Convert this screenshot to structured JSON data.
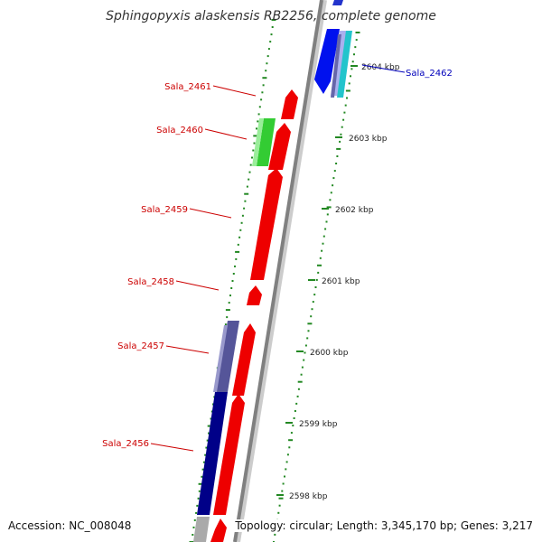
{
  "title": "Sphingopyxis alaskensis RB2256, complete genome",
  "footer": {
    "accession": "Accession: NC_008048",
    "topology": "Topology: circular; Length: 3,345,170 bp; Genes: 3,217"
  },
  "colors": {
    "forward_gene": "#ee0000",
    "reverse_gene": "#0000ee",
    "label_forward": "#cc0000",
    "label_reverse": "#0000bb",
    "backbone": "#888888",
    "ticks": "#228822"
  },
  "genome_ticks": [
    "2604 kbp",
    "2603 kbp",
    "2602 kbp",
    "2601 kbp",
    "2600 kbp",
    "2599 kbp",
    "2598 kbp"
  ],
  "gene_labels": [
    {
      "name": "Sala_2462",
      "strand": "reverse"
    },
    {
      "name": "Sala_2461",
      "strand": "forward"
    },
    {
      "name": "Sala_2460",
      "strand": "forward"
    },
    {
      "name": "Sala_2459",
      "strand": "forward"
    },
    {
      "name": "Sala_2458",
      "strand": "forward"
    },
    {
      "name": "Sala_2457",
      "strand": "forward"
    },
    {
      "name": "Sala_2456",
      "strand": "forward"
    }
  ]
}
